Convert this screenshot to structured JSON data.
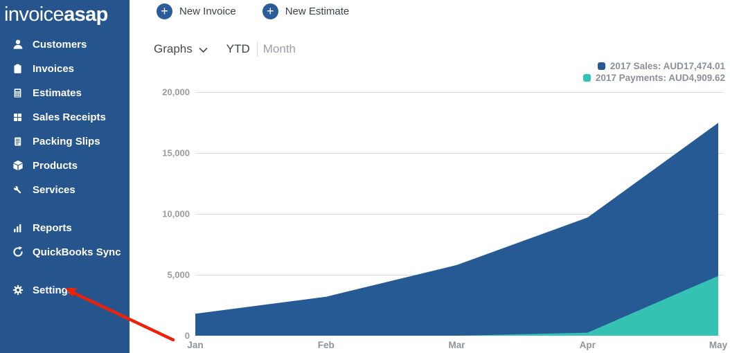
{
  "sidebar": {
    "logo_prefix": "invoice",
    "logo_suffix": "asap",
    "items": [
      {
        "label": "Customers",
        "icon": "user-icon"
      },
      {
        "label": "Invoices",
        "icon": "clipboard-icon"
      },
      {
        "label": "Estimates",
        "icon": "calculator-icon"
      },
      {
        "label": "Sales Receipts",
        "icon": "grid-icon"
      },
      {
        "label": "Packing Slips",
        "icon": "pages-icon"
      },
      {
        "label": "Products",
        "icon": "cube-icon"
      },
      {
        "label": "Services",
        "icon": "wrench-icon"
      },
      {
        "label": "Reports",
        "icon": "bar-chart-icon"
      },
      {
        "label": "QuickBooks Sync",
        "icon": "sync-icon"
      },
      {
        "label": "Settings",
        "icon": "gear-icon"
      }
    ]
  },
  "header": {
    "new_invoice_label": "New Invoice",
    "new_estimate_label": "New Estimate"
  },
  "toolbar": {
    "graphs_label": "Graphs",
    "tabs": [
      {
        "label": "YTD",
        "active": true
      },
      {
        "label": "Month",
        "active": false
      }
    ]
  },
  "chart_data": {
    "type": "area",
    "title": "",
    "x": [
      "Jan",
      "Feb",
      "Mar",
      "Apr",
      "May"
    ],
    "series": [
      {
        "name": "2017 Sales",
        "legend_label": "2017 Sales: AUD17,474.01",
        "color": "#265a94",
        "values": [
          1800,
          3200,
          5800,
          9700,
          17474.01
        ]
      },
      {
        "name": "2017 Payments",
        "legend_label": "2017 Payments: AUD4,909.62",
        "color": "#35c2b2",
        "values": [
          0,
          0,
          0,
          250,
          4909.62
        ]
      }
    ],
    "ylim": [
      0,
      20000
    ],
    "y_ticks": [
      0,
      5000,
      10000,
      15000,
      20000
    ],
    "y_tick_labels": [
      "0",
      "5,000",
      "10,000",
      "15,000",
      "20,000"
    ],
    "grid": true,
    "legend_position": "top-right"
  },
  "annotation_arrow": {
    "color": "#ec2109",
    "points_to": "Settings"
  },
  "colors": {
    "sidebar_bg": "#26558d",
    "accent_blue": "#2b5c99",
    "grid_line": "#dcdcdc"
  }
}
